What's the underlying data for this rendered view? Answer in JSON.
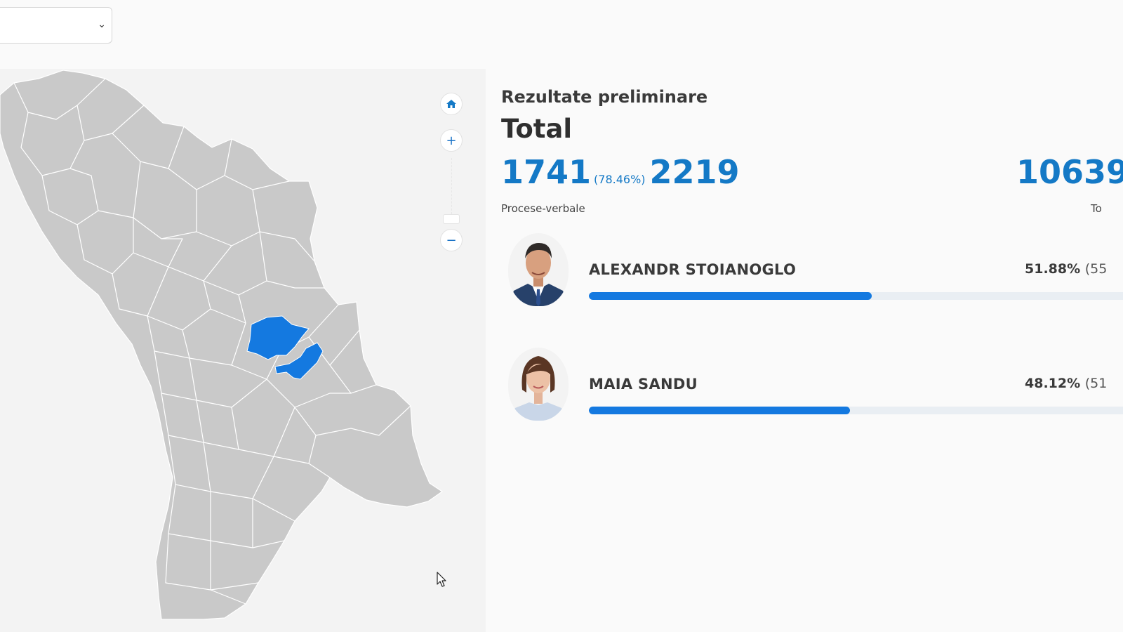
{
  "filter": {
    "selected": "",
    "icon": "chevron-down-icon"
  },
  "map": {
    "controls": [
      {
        "name": "home",
        "icon": "home-icon"
      },
      {
        "name": "zoom-in",
        "icon": "plus-icon"
      },
      {
        "name": "zoom-out",
        "icon": "minus-icon"
      }
    ],
    "colors": {
      "region": "#c9c9c9",
      "border": "#ffffff",
      "highlight": "#1479e0",
      "background": "#f3f3f3"
    }
  },
  "results": {
    "heading": "Rezultate preliminare",
    "scope": "Total",
    "processed": "1741",
    "processed_pct": "(78.46%)",
    "total_reports": "2219",
    "reports_label": "Procese-verbale",
    "votes_partial": "10639",
    "votes_label_partial": "To"
  },
  "candidates": [
    {
      "name": "ALEXANDR STOIANOGLO",
      "percent": "51.88%",
      "extra": "(55",
      "share": 51.88,
      "bar_fraction": 0.52
    },
    {
      "name": "MAIA SANDU",
      "percent": "48.12%",
      "extra": "(51",
      "share": 48.12,
      "bar_fraction": 0.48
    }
  ],
  "colors": {
    "accent": "#1479c6",
    "bar": "#1479e0",
    "track": "#e9eef3"
  }
}
